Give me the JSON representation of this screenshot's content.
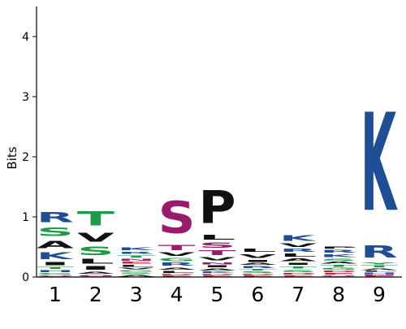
{
  "chart_data": {
    "type": "sequence-logo",
    "ylabel": "Bits",
    "ylim": [
      0,
      4.5
    ],
    "yticks": [
      0,
      1,
      2,
      3,
      4
    ],
    "ytick_labels": [
      "0",
      "1",
      "2",
      "3",
      "4"
    ],
    "positions": [
      "1",
      "2",
      "3",
      "4",
      "5",
      "6",
      "7",
      "8",
      "9"
    ],
    "colors": {
      "blue": "#1f4e96",
      "green": "#1f9a48",
      "black": "#111111",
      "magenta": "#9a1a6b",
      "red": "#c4213a"
    },
    "letters": [
      [
        {
          "letter": "Q",
          "bits": 0.03,
          "color": "magenta"
        },
        {
          "letter": "G",
          "bits": 0.04,
          "color": "green"
        },
        {
          "letter": "H",
          "bits": 0.05,
          "color": "blue"
        },
        {
          "letter": "T",
          "bits": 0.06,
          "color": "green"
        },
        {
          "letter": "I",
          "bits": 0.08,
          "color": "black"
        },
        {
          "letter": "K",
          "bits": 0.18,
          "color": "blue"
        },
        {
          "letter": "A",
          "bits": 0.2,
          "color": "black"
        },
        {
          "letter": "S",
          "bits": 0.22,
          "color": "green"
        },
        {
          "letter": "R",
          "bits": 0.26,
          "color": "blue"
        }
      ],
      [
        {
          "letter": "Q",
          "bits": 0.04,
          "color": "magenta"
        },
        {
          "letter": "A",
          "bits": 0.06,
          "color": "black"
        },
        {
          "letter": "I",
          "bits": 0.1,
          "color": "black"
        },
        {
          "letter": "L",
          "bits": 0.12,
          "color": "black"
        },
        {
          "letter": "S",
          "bits": 0.22,
          "color": "green"
        },
        {
          "letter": "V",
          "bits": 0.24,
          "color": "black"
        },
        {
          "letter": "T",
          "bits": 0.38,
          "color": "green"
        }
      ],
      [
        {
          "letter": "A",
          "bits": 0.04,
          "color": "black"
        },
        {
          "letter": "S",
          "bits": 0.04,
          "color": "green"
        },
        {
          "letter": "G",
          "bits": 0.04,
          "color": "green"
        },
        {
          "letter": "V",
          "bits": 0.04,
          "color": "black"
        },
        {
          "letter": "L",
          "bits": 0.05,
          "color": "black"
        },
        {
          "letter": "E",
          "bits": 0.05,
          "color": "red"
        },
        {
          "letter": "N",
          "bits": 0.05,
          "color": "magenta"
        },
        {
          "letter": "T",
          "bits": 0.06,
          "color": "green"
        },
        {
          "letter": "R",
          "bits": 0.06,
          "color": "blue"
        },
        {
          "letter": "K",
          "bits": 0.07,
          "color": "blue"
        }
      ],
      [
        {
          "letter": "E",
          "bits": 0.03,
          "color": "red"
        },
        {
          "letter": "D",
          "bits": 0.03,
          "color": "red"
        },
        {
          "letter": "L",
          "bits": 0.05,
          "color": "black"
        },
        {
          "letter": "A",
          "bits": 0.06,
          "color": "black"
        },
        {
          "letter": "R",
          "bits": 0.08,
          "color": "blue"
        },
        {
          "letter": "G",
          "bits": 0.08,
          "color": "green"
        },
        {
          "letter": "V",
          "bits": 0.09,
          "color": "black"
        },
        {
          "letter": "T",
          "bits": 0.14,
          "color": "magenta"
        },
        {
          "letter": "S",
          "bits": 0.86,
          "color": "magenta"
        }
      ],
      [
        {
          "letter": "E",
          "bits": 0.03,
          "color": "red"
        },
        {
          "letter": "D",
          "bits": 0.03,
          "color": "red"
        },
        {
          "letter": "K",
          "bits": 0.04,
          "color": "blue"
        },
        {
          "letter": "A",
          "bits": 0.05,
          "color": "black"
        },
        {
          "letter": "I",
          "bits": 0.05,
          "color": "black"
        },
        {
          "letter": "N",
          "bits": 0.06,
          "color": "magenta"
        },
        {
          "letter": "V",
          "bits": 0.08,
          "color": "black"
        },
        {
          "letter": "T",
          "bits": 0.12,
          "color": "magenta"
        },
        {
          "letter": "S",
          "bits": 0.14,
          "color": "magenta"
        },
        {
          "letter": "L",
          "bits": 0.12,
          "color": "black"
        },
        {
          "letter": "P",
          "bits": 0.88,
          "color": "black"
        }
      ],
      [
        {
          "letter": "E",
          "bits": 0.03,
          "color": "red"
        },
        {
          "letter": "D",
          "bits": 0.03,
          "color": "red"
        },
        {
          "letter": "S",
          "bits": 0.04,
          "color": "green"
        },
        {
          "letter": "T",
          "bits": 0.04,
          "color": "green"
        },
        {
          "letter": "R",
          "bits": 0.05,
          "color": "blue"
        },
        {
          "letter": "A",
          "bits": 0.05,
          "color": "black"
        },
        {
          "letter": "I",
          "bits": 0.06,
          "color": "black"
        },
        {
          "letter": "V",
          "bits": 0.1,
          "color": "black"
        },
        {
          "letter": "L",
          "bits": 0.08,
          "color": "black"
        }
      ],
      [
        {
          "letter": "E",
          "bits": 0.03,
          "color": "red"
        },
        {
          "letter": "D",
          "bits": 0.04,
          "color": "red"
        },
        {
          "letter": "S",
          "bits": 0.06,
          "color": "green"
        },
        {
          "letter": "T",
          "bits": 0.06,
          "color": "green"
        },
        {
          "letter": "I",
          "bits": 0.06,
          "color": "black"
        },
        {
          "letter": "A",
          "bits": 0.07,
          "color": "black"
        },
        {
          "letter": "L",
          "bits": 0.08,
          "color": "black"
        },
        {
          "letter": "R",
          "bits": 0.08,
          "color": "blue"
        },
        {
          "letter": "V",
          "bits": 0.09,
          "color": "black"
        },
        {
          "letter": "K",
          "bits": 0.16,
          "color": "blue"
        }
      ],
      [
        {
          "letter": "Q",
          "bits": 0.03,
          "color": "magenta"
        },
        {
          "letter": "E",
          "bits": 0.04,
          "color": "red"
        },
        {
          "letter": "D",
          "bits": 0.04,
          "color": "red"
        },
        {
          "letter": "G",
          "bits": 0.05,
          "color": "green"
        },
        {
          "letter": "T",
          "bits": 0.05,
          "color": "green"
        },
        {
          "letter": "A",
          "bits": 0.05,
          "color": "black"
        },
        {
          "letter": "S",
          "bits": 0.06,
          "color": "green"
        },
        {
          "letter": "K",
          "bits": 0.07,
          "color": "blue"
        },
        {
          "letter": "R",
          "bits": 0.07,
          "color": "blue"
        },
        {
          "letter": "P",
          "bits": 0.06,
          "color": "black"
        }
      ],
      [
        {
          "letter": "E",
          "bits": 0.02,
          "color": "red"
        },
        {
          "letter": "N",
          "bits": 0.03,
          "color": "magenta"
        },
        {
          "letter": "H",
          "bits": 0.03,
          "color": "blue"
        },
        {
          "letter": "L",
          "bits": 0.03,
          "color": "black"
        },
        {
          "letter": "A",
          "bits": 0.04,
          "color": "black"
        },
        {
          "letter": "T",
          "bits": 0.05,
          "color": "green"
        },
        {
          "letter": "Y",
          "bits": 0.06,
          "color": "green"
        },
        {
          "letter": "R",
          "bits": 0.32,
          "color": "blue"
        },
        {
          "letter": "K",
          "bits": 2.62,
          "color": "blue"
        }
      ]
    ]
  }
}
